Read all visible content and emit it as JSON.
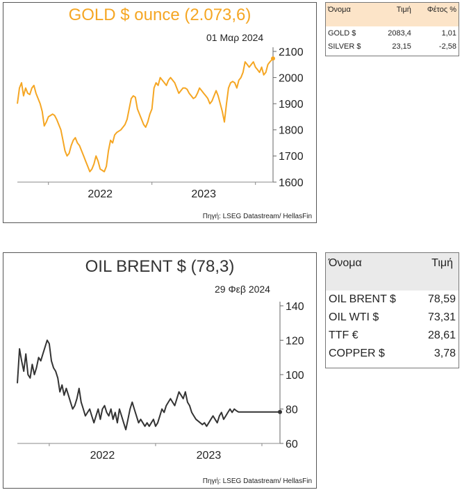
{
  "gold": {
    "title": "GOLD $ ounce (2.073,6)",
    "date": "01 Μαρ 2024",
    "source": "Πηγή: LSEG Datastream/ HellasFin",
    "title_color": "#F5A623",
    "line_color": "#F5A623"
  },
  "gold_table": {
    "headers": [
      "Όνομα",
      "Τιμή",
      "Φέτος %"
    ],
    "rows": [
      {
        "name": "GOLD $",
        "price": "2083,4",
        "ytd": "1,01"
      },
      {
        "name": "SILVER $",
        "price": "23,15",
        "ytd": "-2,58"
      }
    ],
    "header_bg": "#FCE4C8"
  },
  "oil": {
    "title": "OIL BRENT $ (78,3)",
    "date": "29 Φεβ 2024",
    "source": "Πηγή: LSEG Datastream/ HellasFin",
    "line_color": "#333333"
  },
  "oil_table": {
    "headers": [
      "Όνομα",
      "Τιμή"
    ],
    "rows": [
      {
        "name": "OIL BRENT $",
        "price": "78,59"
      },
      {
        "name": "OIL WTI $",
        "price": "73,31"
      },
      {
        "name": "TTF €",
        "price": "28,61"
      },
      {
        "name": "COPPER $",
        "price": "3,78"
      }
    ],
    "header_bg": "#EAEAEA"
  },
  "chart_data": [
    {
      "type": "line",
      "title": "GOLD $ ounce (2.073,6)",
      "xlabel": "",
      "ylabel": "",
      "x_tick_labels": [
        "2022",
        "2023"
      ],
      "y_ticks": [
        1600,
        1700,
        1800,
        1900,
        2000,
        2100
      ],
      "ylim": [
        1600,
        2100
      ],
      "xlim": [
        2021.7,
        2024.17
      ],
      "grid": false,
      "series": [
        {
          "x": [
            2021.7,
            2021.72,
            2021.74,
            2021.76,
            2021.78,
            2021.8,
            2021.82,
            2021.84,
            2021.86,
            2021.88,
            2021.9,
            2021.92,
            2021.94,
            2021.96,
            2021.98,
            2022.0,
            2022.02,
            2022.04,
            2022.06,
            2022.08,
            2022.1,
            2022.12,
            2022.14,
            2022.16,
            2022.18,
            2022.2,
            2022.22,
            2022.24,
            2022.26,
            2022.28,
            2022.3,
            2022.32,
            2022.34,
            2022.36,
            2022.38,
            2022.4,
            2022.42,
            2022.44,
            2022.46,
            2022.48,
            2022.5,
            2022.52,
            2022.54,
            2022.56,
            2022.58,
            2022.6,
            2022.62,
            2022.64,
            2022.66,
            2022.68,
            2022.7,
            2022.72,
            2022.74,
            2022.76,
            2022.78,
            2022.8,
            2022.82,
            2022.84,
            2022.86,
            2022.88,
            2022.9,
            2022.92,
            2022.94,
            2022.96,
            2022.98,
            2023.0,
            2023.02,
            2023.04,
            2023.06,
            2023.08,
            2023.1,
            2023.12,
            2023.14,
            2023.16,
            2023.18,
            2023.2,
            2023.22,
            2023.24,
            2023.26,
            2023.28,
            2023.3,
            2023.32,
            2023.34,
            2023.36,
            2023.38,
            2023.4,
            2023.42,
            2023.44,
            2023.46,
            2023.48,
            2023.5,
            2023.52,
            2023.54,
            2023.56,
            2023.58,
            2023.6,
            2023.62,
            2023.64,
            2023.66,
            2023.68,
            2023.7,
            2023.72,
            2023.74,
            2023.76,
            2023.78,
            2023.8,
            2023.82,
            2023.84,
            2023.86,
            2023.88,
            2023.9,
            2023.92,
            2023.94,
            2023.96,
            2023.98,
            2024.0,
            2024.02,
            2024.04,
            2024.06,
            2024.08,
            2024.1,
            2024.12,
            2024.14,
            2024.17
          ],
          "y": [
            1900,
            1960,
            1980,
            1930,
            1960,
            1940,
            1935,
            1960,
            1970,
            1940,
            1920,
            1900,
            1870,
            1815,
            1830,
            1850,
            1855,
            1860,
            1855,
            1840,
            1820,
            1800,
            1760,
            1720,
            1700,
            1710,
            1740,
            1760,
            1770,
            1750,
            1740,
            1720,
            1700,
            1680,
            1660,
            1640,
            1650,
            1670,
            1700,
            1680,
            1650,
            1645,
            1640,
            1660,
            1720,
            1760,
            1750,
            1780,
            1790,
            1795,
            1800,
            1810,
            1820,
            1840,
            1880,
            1920,
            1930,
            1925,
            1880,
            1860,
            1840,
            1820,
            1810,
            1830,
            1860,
            1880,
            1960,
            1980,
            1970,
            2000,
            1990,
            1980,
            1970,
            1990,
            2000,
            1990,
            1980,
            1960,
            1940,
            1950,
            1960,
            1960,
            1955,
            1940,
            1930,
            1920,
            1925,
            1940,
            1960,
            1950,
            1940,
            1930,
            1920,
            1900,
            1910,
            1930,
            1950,
            1930,
            1900,
            1870,
            1830,
            1900,
            1960,
            1980,
            1985,
            1980,
            1960,
            1990,
            2000,
            2020,
            2060,
            2050,
            2040,
            2050,
            2060,
            2040,
            2030,
            2020,
            2040,
            2010,
            2020,
            2050,
            2060,
            2073
          ]
        }
      ]
    },
    {
      "type": "line",
      "title": "OIL BRENT $ (78,3)",
      "xlabel": "",
      "ylabel": "",
      "x_tick_labels": [
        "2022",
        "2023"
      ],
      "y_ticks": [
        60,
        80,
        100,
        120,
        140
      ],
      "ylim": [
        60,
        140
      ],
      "xlim": [
        2021.7,
        2024.17
      ],
      "grid": false,
      "series": [
        {
          "x": [
            2021.7,
            2021.72,
            2021.74,
            2021.76,
            2021.78,
            2021.8,
            2021.82,
            2021.84,
            2021.86,
            2021.88,
            2021.9,
            2021.92,
            2021.94,
            2021.96,
            2021.98,
            2022.0,
            2022.02,
            2022.04,
            2022.06,
            2022.08,
            2022.1,
            2022.12,
            2022.14,
            2022.16,
            2022.18,
            2022.2,
            2022.22,
            2022.24,
            2022.26,
            2022.28,
            2022.3,
            2022.32,
            2022.34,
            2022.36,
            2022.38,
            2022.4,
            2022.42,
            2022.44,
            2022.46,
            2022.48,
            2022.5,
            2022.52,
            2022.54,
            2022.56,
            2022.58,
            2022.6,
            2022.62,
            2022.64,
            2022.66,
            2022.68,
            2022.7,
            2022.72,
            2022.74,
            2022.76,
            2022.78,
            2022.8,
            2022.82,
            2022.84,
            2022.86,
            2022.88,
            2022.9,
            2022.92,
            2022.94,
            2022.96,
            2022.98,
            2023.0,
            2023.02,
            2023.04,
            2023.06,
            2023.08,
            2023.1,
            2023.12,
            2023.14,
            2023.16,
            2023.18,
            2023.2,
            2023.22,
            2023.24,
            2023.26,
            2023.28,
            2023.3,
            2023.32,
            2023.34,
            2023.36,
            2023.38,
            2023.4,
            2023.42,
            2023.44,
            2023.46,
            2023.48,
            2023.5,
            2023.52,
            2023.54,
            2023.56,
            2023.58,
            2023.6,
            2023.62,
            2023.64,
            2023.66,
            2023.68,
            2023.7,
            2023.72,
            2023.74,
            2023.76,
            2023.78,
            2023.8,
            2023.82,
            2023.84,
            2023.86,
            2023.88,
            2023.9,
            2023.92,
            2023.94,
            2023.96,
            2023.98,
            2024.0,
            2024.02,
            2024.04,
            2024.06,
            2024.08,
            2024.1,
            2024.12,
            2024.14,
            2024.17
          ],
          "y": [
            95,
            115,
            108,
            102,
            112,
            100,
            98,
            106,
            100,
            104,
            110,
            108,
            112,
            116,
            120,
            118,
            108,
            104,
            102,
            98,
            90,
            94,
            88,
            92,
            88,
            84,
            80,
            82,
            86,
            92,
            84,
            80,
            76,
            78,
            80,
            76,
            72,
            76,
            80,
            74,
            80,
            82,
            78,
            76,
            80,
            74,
            78,
            72,
            80,
            76,
            72,
            68,
            74,
            80,
            84,
            80,
            76,
            72,
            74,
            72,
            70,
            72,
            70,
            72,
            74,
            70,
            72,
            76,
            80,
            78,
            82,
            84,
            86,
            84,
            82,
            86,
            90,
            88,
            86,
            90,
            84,
            82,
            78,
            76,
            74,
            73,
            72,
            71,
            72,
            70,
            72,
            74,
            76,
            74,
            72,
            76,
            78,
            74,
            76,
            78,
            80,
            78,
            80,
            79,
            78.3,
            78.3,
            78.3,
            78.3,
            78.3,
            78.3,
            78.3,
            78.3,
            78.3,
            78.3,
            78.3,
            78.3,
            78.3,
            78.3,
            78.3,
            78.3,
            78.3,
            78.3,
            78.3,
            78.3
          ]
        }
      ]
    }
  ]
}
